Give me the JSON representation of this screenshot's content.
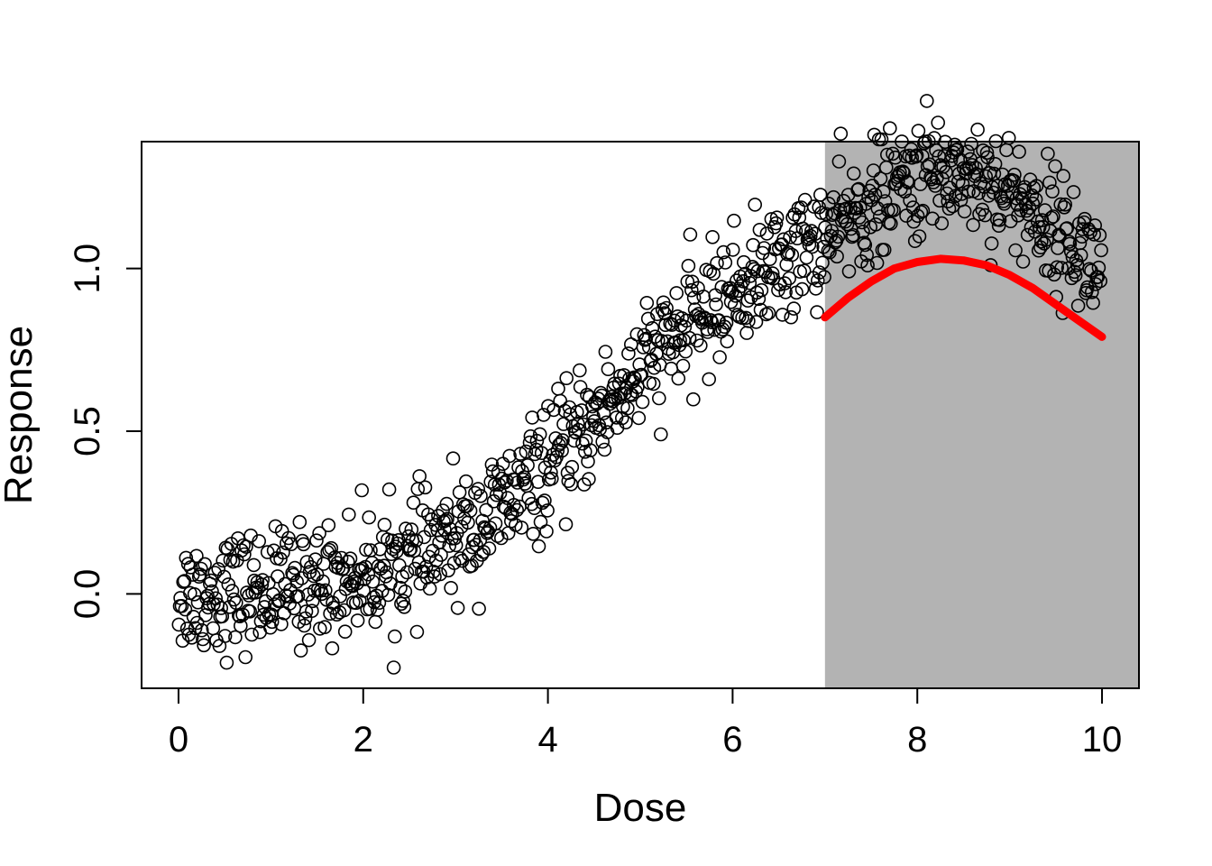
{
  "chart_data": {
    "type": "scatter",
    "title": "",
    "xlabel": "Dose",
    "ylabel": "Response",
    "xlim": [
      -0.4,
      10.4
    ],
    "ylim": [
      -0.29,
      1.39
    ],
    "x_ticks": [
      0,
      2,
      4,
      6,
      8,
      10
    ],
    "x_tick_labels": [
      "0",
      "2",
      "4",
      "6",
      "8",
      "10"
    ],
    "y_ticks": [
      0.0,
      0.5,
      1.0
    ],
    "y_tick_labels": [
      "0.0",
      "0.5",
      "1.0"
    ],
    "grid": false,
    "legend": "none",
    "shaded_region": {
      "x": [
        7,
        10.4
      ],
      "color": "#b3b3b3"
    },
    "points": {
      "marker": "open-circle",
      "color": "#000000",
      "n": 1000,
      "x_range": [
        0,
        10
      ],
      "trend": "sigmoid rising from about 0.0 at dose 0 to about 1.05 near dose 8.3, then declining to about 0.8 at dose 10",
      "noise_sd": 0.09
    },
    "fit_curve": {
      "color": "#ff0000",
      "x": [
        7.0,
        7.25,
        7.5,
        7.75,
        8.0,
        8.25,
        8.5,
        8.75,
        9.0,
        9.25,
        9.5,
        9.75,
        10.0
      ],
      "y": [
        0.85,
        0.91,
        0.96,
        1.0,
        1.02,
        1.03,
        1.025,
        1.01,
        0.98,
        0.94,
        0.89,
        0.84,
        0.79
      ]
    }
  }
}
